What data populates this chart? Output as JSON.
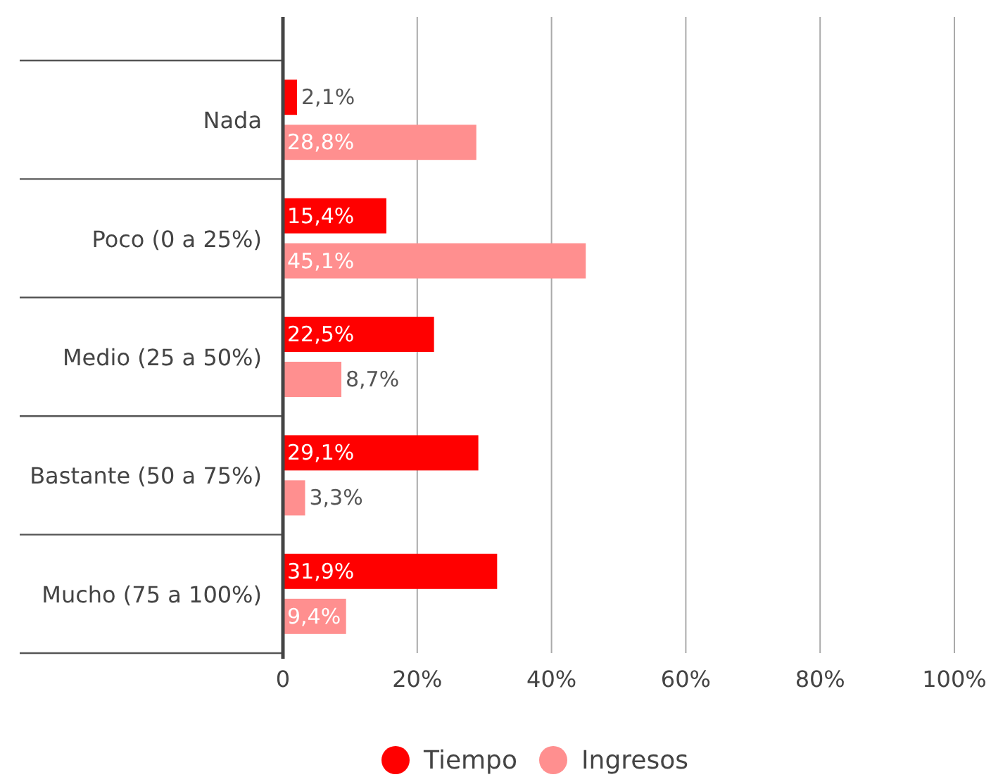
{
  "chart_data": {
    "type": "bar",
    "orientation": "horizontal",
    "categories": [
      "Nada",
      "Poco (0 a 25%)",
      "Medio (25 a 50%)",
      "Bastante (50 a 75%)",
      "Mucho (75 a 100%)"
    ],
    "series": [
      {
        "name": "Tiempo",
        "color": "#ff0000",
        "values": [
          2.1,
          15.4,
          22.5,
          29.1,
          31.9
        ],
        "value_labels": [
          "2,1%",
          "15,4%",
          "22,5%",
          "29,1%",
          "31,9%"
        ]
      },
      {
        "name": "Ingresos",
        "color": "#ff8f8f",
        "values": [
          28.8,
          45.1,
          8.7,
          3.3,
          9.4
        ],
        "value_labels": [
          "28,8%",
          "45,1%",
          "8,7%",
          "3,3%",
          "9,4%"
        ]
      }
    ],
    "xlim": [
      0,
      100
    ],
    "xticks": [
      0,
      {
        "value": 20,
        "label": "20%"
      },
      {
        "value": 40,
        "label": "40%"
      },
      {
        "value": 60,
        "label": "60%"
      },
      {
        "value": 80,
        "label": "80%"
      },
      {
        "value": 100,
        "label": "100%"
      }
    ],
    "grid": "x",
    "legend": "bottom"
  }
}
